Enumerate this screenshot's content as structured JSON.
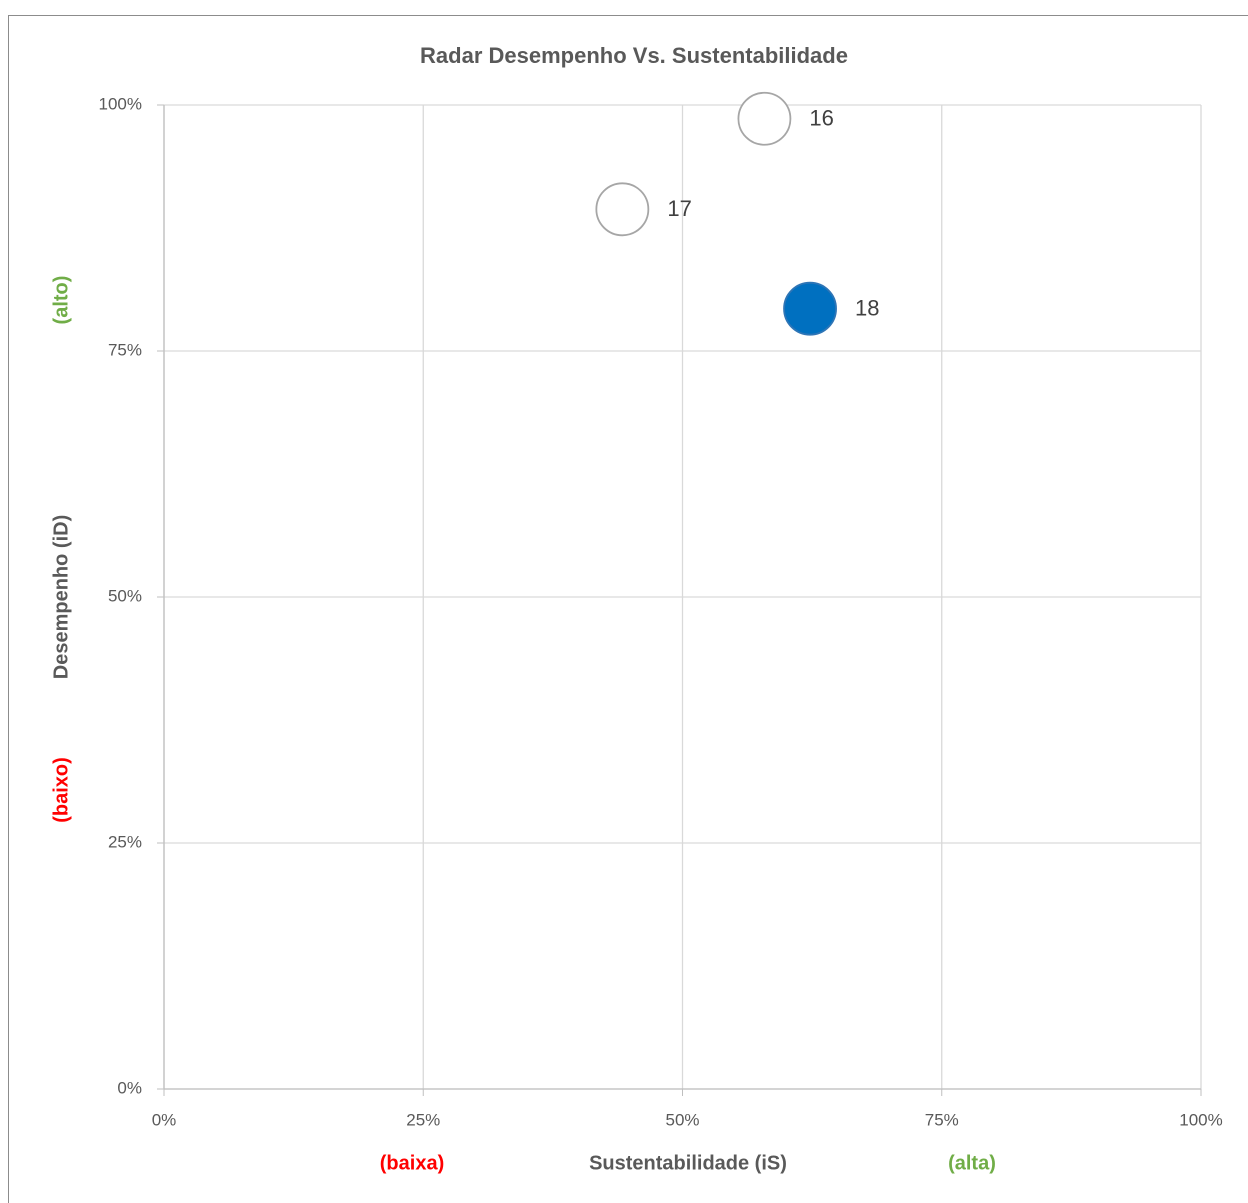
{
  "chart_data": {
    "type": "scatter",
    "title": "Radar Desempenho Vs. Sustentabilidade",
    "x_label": "Sustentabilidade (iS)",
    "y_label": "Desempenho (iD)",
    "xlim": [
      0,
      100
    ],
    "ylim": [
      0,
      100
    ],
    "xticks": [
      {
        "value": 0,
        "label": "0%"
      },
      {
        "value": 25,
        "label": "25%"
      },
      {
        "value": 50,
        "label": "50%"
      },
      {
        "value": 75,
        "label": "75%"
      },
      {
        "value": 100,
        "label": "100%"
      }
    ],
    "yticks": [
      {
        "value": 0,
        "label": "0%"
      },
      {
        "value": 25,
        "label": "25%"
      },
      {
        "value": 50,
        "label": "50%"
      },
      {
        "value": 75,
        "label": "75%"
      },
      {
        "value": 100,
        "label": "100%"
      }
    ],
    "grid": true,
    "series": [
      {
        "x": [
          57.9,
          44.2,
          62.3
        ],
        "values": [
          98.6,
          89.4,
          79.3
        ],
        "labels": [
          "16",
          "17",
          "18"
        ],
        "colors": [
          "#ffffff",
          "#ffffff",
          "#0070c0"
        ],
        "edge_colors": [
          "#a6a6a6",
          "#a6a6a6",
          "#2e75b6"
        ]
      }
    ],
    "annotations": [
      {
        "text": "(alto)",
        "color": "#70ad47"
      },
      {
        "text": "(baixo)",
        "color": "#ff0000"
      },
      {
        "text": "(baixa)",
        "color": "#ff0000"
      },
      {
        "text": "(alta)",
        "color": "#70ad47"
      }
    ]
  }
}
